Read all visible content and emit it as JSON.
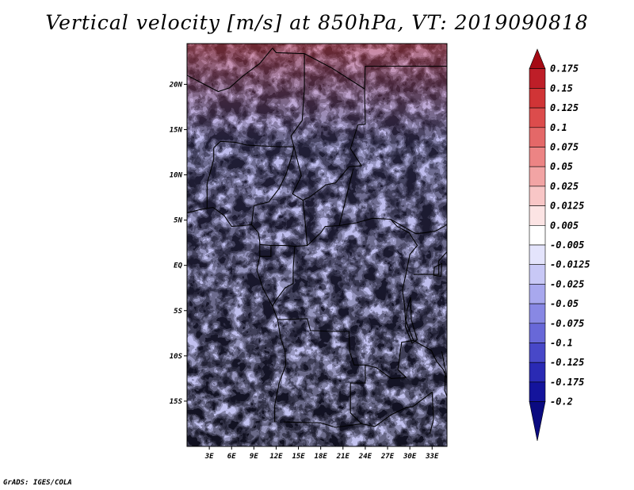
{
  "title": "Vertical velocity [m/s] at 850hPa, VT: 2019090818",
  "credit": "GrADS: IGES/COLA",
  "lat_labels": [
    "20N",
    "15N",
    "10N",
    "5N",
    "EQ",
    "5S",
    "10S",
    "15S"
  ],
  "lat_values": [
    20,
    15,
    10,
    5,
    0,
    -5,
    -10,
    -15
  ],
  "lon_labels": [
    "3E",
    "6E",
    "9E",
    "12E",
    "15E",
    "18E",
    "21E",
    "24E",
    "27E",
    "30E",
    "33E"
  ],
  "lon_values": [
    3,
    6,
    9,
    12,
    15,
    18,
    21,
    24,
    27,
    30,
    33
  ],
  "map_extent": {
    "lon": [
      0,
      35
    ],
    "lat": [
      -20,
      24.5
    ]
  },
  "colorbar": {
    "labels": [
      "0.175",
      "0.15",
      "0.125",
      "0.1",
      "0.075",
      "0.05",
      "0.025",
      "0.0125",
      "0.005",
      "-0.005",
      "-0.0125",
      "-0.025",
      "-0.05",
      "-0.075",
      "-0.1",
      "-0.125",
      "-0.175",
      "-0.2"
    ],
    "colors": [
      "#a50a14",
      "#be1e28",
      "#d03436",
      "#dc4c4c",
      "#e46868",
      "#ec8484",
      "#f2a4a4",
      "#f8c6c6",
      "#fce4e4",
      "#ffffff",
      "#e4e4fc",
      "#c8c8f6",
      "#a8a8ee",
      "#8888e4",
      "#6868d8",
      "#4848c8",
      "#2a2ab4",
      "#14149c",
      "#0a0a80"
    ]
  }
}
